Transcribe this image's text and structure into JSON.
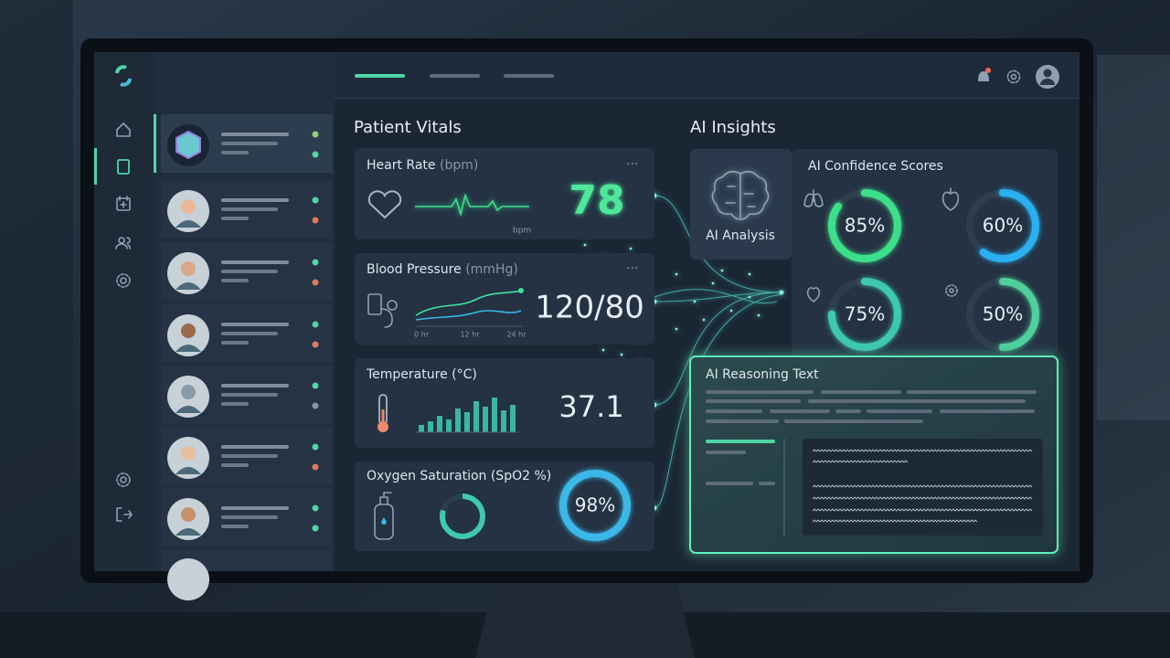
{
  "vitals": {
    "title": "Patient Vitals",
    "heart_rate": {
      "label": "Heart Rate",
      "unit": "(bpm)",
      "value": 78,
      "axis_unit": "bpm"
    },
    "blood_pressure": {
      "label": "Blood Pressure",
      "unit": "(mmHg)",
      "value": "120/80",
      "ticks": [
        "0 hr",
        "12 hr",
        "24 hr"
      ]
    },
    "temperature": {
      "label": "Temperature (°C)",
      "value": 37.1
    },
    "oxygen": {
      "label": "Oxygen Saturation (SpO2 %)",
      "value": 98,
      "value_label": "98%"
    }
  },
  "insights": {
    "title": "AI Insights",
    "analysis": "AI Analysis",
    "confidence": {
      "title": "AI Confidence Scores",
      "scores": [
        {
          "value": 85,
          "label": "85%"
        },
        {
          "value": 60,
          "label": "60%"
        },
        {
          "value": 75,
          "label": "75%"
        },
        {
          "value": 50,
          "label": "50%"
        }
      ]
    },
    "reasoning": {
      "title": "AI Reasoning Text"
    }
  }
}
